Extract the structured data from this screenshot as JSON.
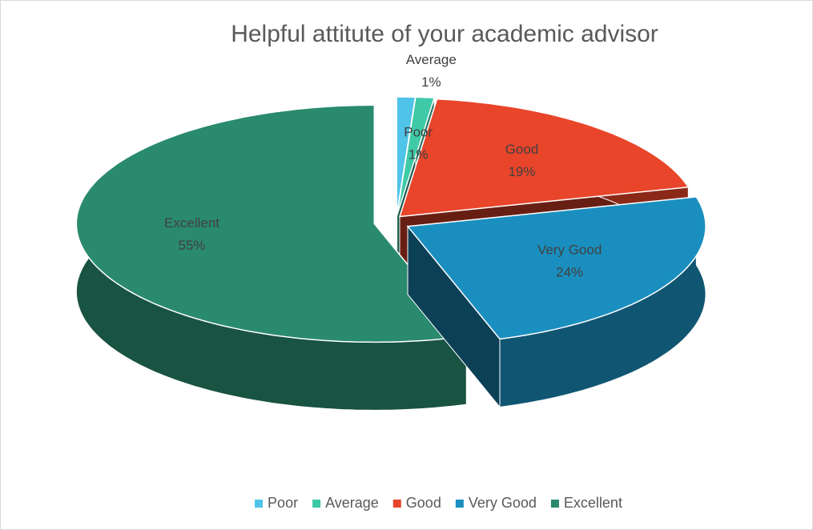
{
  "chart_data": {
    "type": "pie3d",
    "title": "Helpful attitute of your academic advisor",
    "categories": [
      "Poor",
      "Average",
      "Good",
      "Very Good",
      "Excellent"
    ],
    "values": [
      1,
      1,
      19,
      24,
      55
    ],
    "value_labels": [
      "1%",
      "1%",
      "19%",
      "24%",
      "55%"
    ],
    "colors": [
      "#4fc3e8",
      "#3ec9a7",
      "#e8452a",
      "#1a8fbf",
      "#2a8a6e"
    ],
    "legend": "bottom"
  }
}
